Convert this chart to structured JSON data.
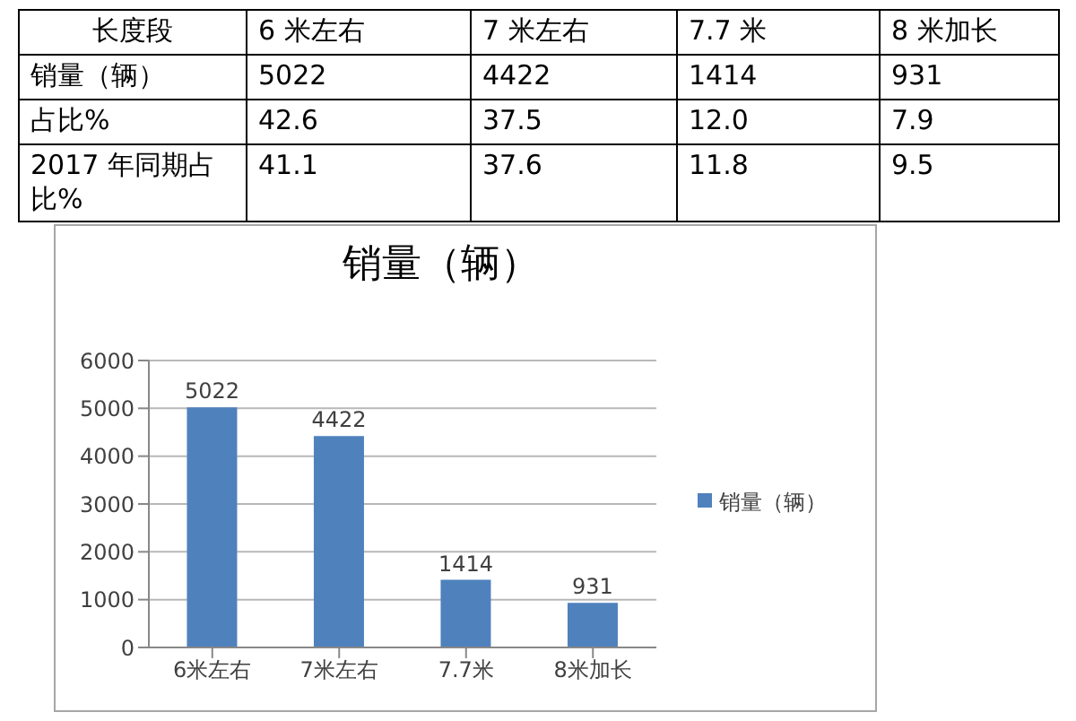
{
  "chart_data": [
    {
      "type": "other",
      "xlabel": "长度段",
      "categories": [
        "6 米左右",
        "7 米左右",
        "7.7 米",
        "8 米加长"
      ],
      "series": [
        {
          "name": "销量（辆）",
          "values": [
            5022,
            4422,
            1414,
            931
          ]
        },
        {
          "name": "占比%",
          "values": [
            42.6,
            37.5,
            12.0,
            7.9
          ],
          "value_labels": [
            "42.6",
            "37.5",
            "12.0",
            "7.9"
          ]
        },
        {
          "name": "2017 年同期占比%",
          "values": [
            41.1,
            37.6,
            11.8,
            9.5
          ]
        }
      ],
      "data_labels": true
    },
    {
      "type": "bar",
      "title": "销量（辆）",
      "categories": [
        "6米左右",
        "7米左右",
        "7.7米",
        "8米加长"
      ],
      "series": [
        {
          "name": "销量（辆）",
          "color": "#4f81bd",
          "values": [
            5022,
            4422,
            1414,
            931
          ]
        }
      ],
      "ylim": [
        0,
        6000
      ],
      "yticks": [
        0,
        1000,
        2000,
        3000,
        4000,
        5000,
        6000
      ],
      "grid": "y",
      "legend": "right",
      "data_labels": true
    }
  ]
}
